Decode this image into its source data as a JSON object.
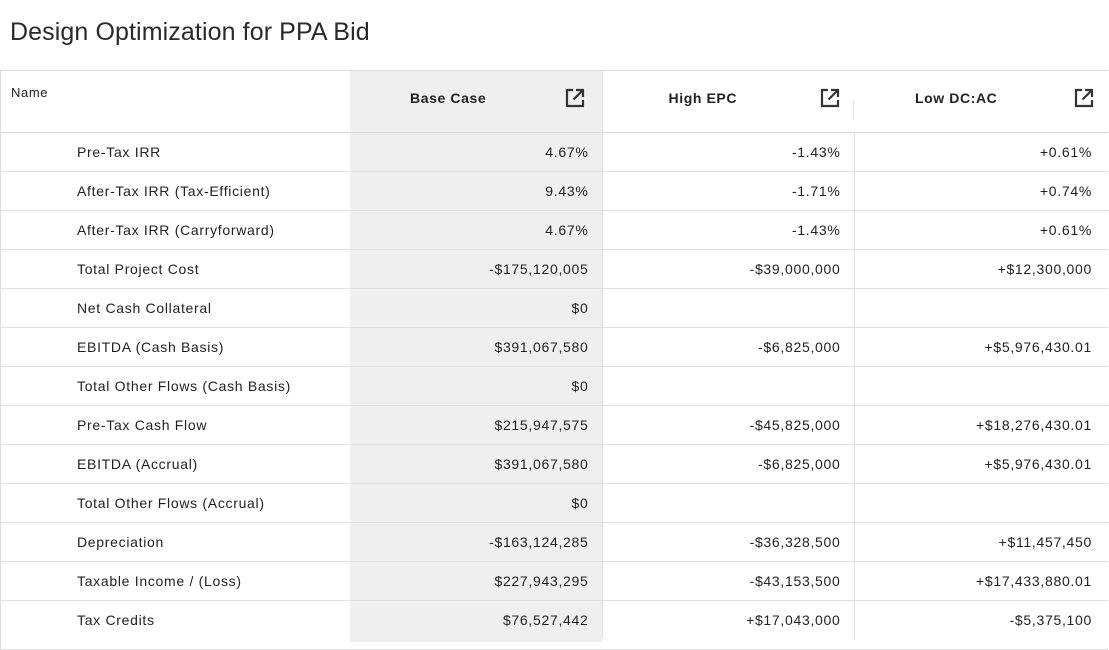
{
  "page": {
    "title": "Design Optimization for PPA Bid"
  },
  "table": {
    "name_header": "Name",
    "columns": [
      {
        "label": "Base Case",
        "icon": "open-external-icon"
      },
      {
        "label": "High EPC",
        "icon": "open-external-icon"
      },
      {
        "label": "Low DC:AC",
        "icon": "open-external-icon"
      }
    ],
    "rows": [
      {
        "name": "Pre-Tax IRR",
        "values": [
          "4.67%",
          "-1.43%",
          "+0.61%"
        ]
      },
      {
        "name": "After-Tax IRR (Tax-Efficient)",
        "values": [
          "9.43%",
          "-1.71%",
          "+0.74%"
        ]
      },
      {
        "name": "After-Tax IRR (Carryforward)",
        "values": [
          "4.67%",
          "-1.43%",
          "+0.61%"
        ]
      },
      {
        "name": "Total Project Cost",
        "values": [
          "-$175,120,005",
          "-$39,000,000",
          "+$12,300,000"
        ]
      },
      {
        "name": "Net Cash Collateral",
        "values": [
          "$0",
          "",
          ""
        ]
      },
      {
        "name": "EBITDA (Cash Basis)",
        "values": [
          "$391,067,580",
          "-$6,825,000",
          "+$5,976,430.01"
        ]
      },
      {
        "name": "Total Other Flows (Cash Basis)",
        "values": [
          "$0",
          "",
          ""
        ]
      },
      {
        "name": "Pre-Tax Cash Flow",
        "values": [
          "$215,947,575",
          "-$45,825,000",
          "+$18,276,430.01"
        ]
      },
      {
        "name": "EBITDA (Accrual)",
        "values": [
          "$391,067,580",
          "-$6,825,000",
          "+$5,976,430.01"
        ]
      },
      {
        "name": "Total Other Flows (Accrual)",
        "values": [
          "$0",
          "",
          ""
        ]
      },
      {
        "name": "Depreciation",
        "values": [
          "-$163,124,285",
          "-$36,328,500",
          "+$11,457,450"
        ]
      },
      {
        "name": "Taxable Income / (Loss)",
        "values": [
          "$227,943,295",
          "-$43,153,500",
          "+$17,433,880.01"
        ]
      },
      {
        "name": "Tax Credits",
        "values": [
          "$76,527,442",
          "+$17,043,000",
          "-$5,375,100"
        ]
      }
    ]
  }
}
